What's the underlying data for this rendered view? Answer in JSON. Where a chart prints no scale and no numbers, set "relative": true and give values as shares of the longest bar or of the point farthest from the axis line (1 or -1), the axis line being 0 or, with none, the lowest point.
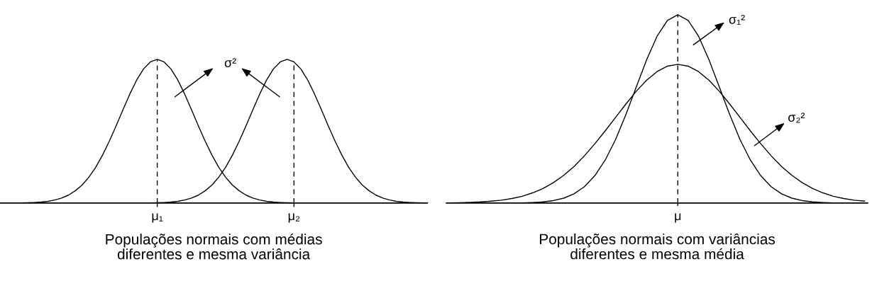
{
  "chart_data": [
    {
      "type": "line",
      "relative": true,
      "xlabel": "Populações normais com médias\ndiferentes e mesma variância",
      "categories": [
        null,
        null,
        null,
        null,
        null,
        null,
        null,
        null,
        null,
        null,
        null,
        null,
        null,
        null,
        null,
        null,
        null,
        null,
        null,
        null,
        null,
        null,
        "μ₁",
        null,
        null,
        null,
        null,
        null,
        null,
        null,
        null,
        null,
        null,
        null,
        null,
        null,
        null,
        null,
        null,
        null,
        null,
        null,
        "μ₂",
        null,
        null,
        null,
        null,
        null,
        null,
        null,
        null,
        null,
        null,
        null,
        null,
        null,
        null,
        null,
        null,
        null,
        null,
        null
      ],
      "series": [
        {
          "color": "#000000",
          "values": [
            0.0,
            0.001,
            0.001,
            0.002,
            0.004,
            0.007,
            0.012,
            0.021,
            0.035,
            0.055,
            0.085,
            0.125,
            0.18,
            0.249,
            0.334,
            0.432,
            0.539,
            0.651,
            0.76,
            0.857,
            0.934,
            0.983,
            1,
            0.983,
            0.934,
            0.857,
            0.76,
            0.651,
            0.539,
            0.432,
            0.334,
            0.249,
            0.18,
            0.125,
            0.085,
            0.055,
            0.035,
            0.021,
            0.012,
            0.007,
            0.004,
            0.002,
            0.001,
            0.001,
            0.0,
            null,
            null,
            null,
            null,
            null,
            null,
            null,
            null,
            null,
            null,
            null,
            null,
            null,
            null,
            null,
            null,
            null
          ]
        },
        {
          "color": "#000000",
          "values": [
            null,
            null,
            null,
            null,
            null,
            null,
            null,
            null,
            null,
            null,
            null,
            null,
            null,
            null,
            null,
            null,
            null,
            null,
            null,
            null,
            0.001,
            0.001,
            0.002,
            0.004,
            0.007,
            0.012,
            0.021,
            0.035,
            0.055,
            0.085,
            0.125,
            0.18,
            0.249,
            0.334,
            0.432,
            0.539,
            0.651,
            0.76,
            0.857,
            0.934,
            0.983,
            1,
            0.983,
            0.934,
            0.857,
            0.76,
            0.651,
            0.539,
            0.432,
            0.334,
            0.249,
            0.18,
            0.125,
            0.085,
            0.055,
            0.035,
            0.021,
            0.012,
            0.007,
            0.004,
            0.002,
            0.001
          ]
        }
      ],
      "ref_lines": [
        {
          "axis": "x",
          "value": "μ₁",
          "line_style": "dashed",
          "color": "#000000"
        },
        {
          "axis": "x",
          "value": "μ₂",
          "line_style": "dashed",
          "color": "#000000"
        }
      ],
      "annotations": [
        "σ²"
      ]
    },
    {
      "type": "line",
      "relative": true,
      "xlabel": "Populações normais com variâncias\ndiferentes e mesma média",
      "categories": [
        null,
        null,
        null,
        null,
        null,
        null,
        null,
        null,
        null,
        null,
        null,
        null,
        null,
        null,
        null,
        null,
        null,
        null,
        null,
        null,
        null,
        null,
        null,
        null,
        null,
        null,
        null,
        null,
        null,
        null,
        null,
        null,
        null,
        null,
        null,
        null,
        null,
        null,
        null,
        null,
        null
      ],
      "series": [
        {
          "color": "#000000",
          "values": [
            0,
            0,
            0,
            0,
            0,
            0,
            0,
            0.001,
            0.003,
            0.006,
            0.013,
            0.026,
            0.049,
            0.087,
            0.145,
            0.228,
            0.337,
            0.47,
            0.617,
            0.762,
            0.886,
            0.97,
            1,
            0.97,
            0.886,
            0.762,
            0.617,
            0.47,
            0.337,
            0.228,
            0.145,
            0.087,
            0.049,
            0.026,
            0.013,
            0.006,
            0.003,
            0.001,
            0,
            0,
            0
          ]
        },
        {
          "color": "#000000",
          "values": [
            0.001,
            0.002,
            0.004,
            0.006,
            0.01,
            0.015,
            0.024,
            0.036,
            0.054,
            0.077,
            0.108,
            0.147,
            0.194,
            0.251,
            0.315,
            0.383,
            0.455,
            0.526,
            0.594,
            0.653,
            0.698,
            0.727,
            0.737,
            0.727,
            0.698,
            0.653,
            0.594,
            0.526,
            0.455,
            0.383,
            0.315,
            0.251,
            0.194,
            0.147,
            0.108,
            0.077,
            0.054,
            0.036,
            0.024,
            0.015,
            0.01
          ]
        }
      ],
      "annotations": [
        "μ",
        "σ₁²",
        "σ₂²"
      ]
    }
  ]
}
